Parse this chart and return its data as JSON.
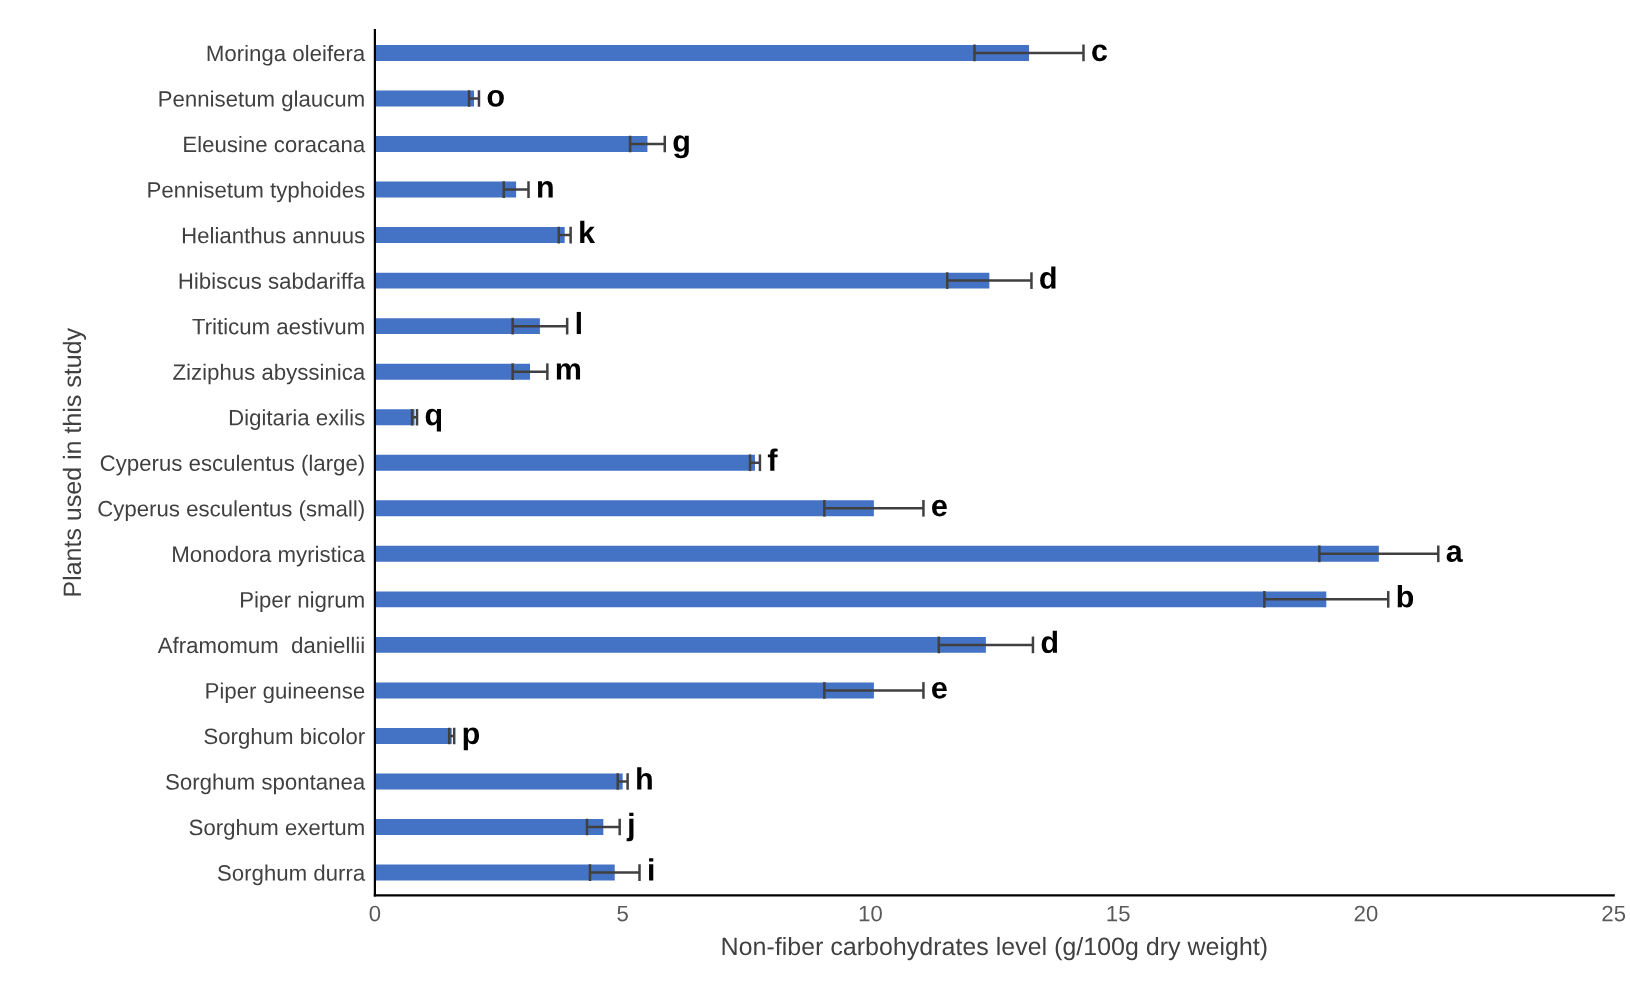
{
  "chart_data": {
    "type": "bar",
    "orientation": "horizontal",
    "xlabel": "Non-fiber carbohydrates level (g/100g dry weight)",
    "ylabel": "Plants used in this study",
    "categories": [
      "Moringa oleifera",
      "Pennisetum glaucum",
      "Eleusine coracana",
      "Pennisetum typhoides",
      "Helianthus annuus",
      "Hibiscus sabdariffa",
      "Triticum aestivum",
      "Ziziphus abyssinica",
      "Digitaria exilis",
      "Cyperus esculentus (large)",
      "Cyperus esculentus (small)",
      "Monodora myristica",
      "Piper nigrum",
      "Aframomum  daniellii",
      "Piper guineense",
      "Sorghum bicolor",
      "Sorghum spontanea",
      "Sorghum exertum",
      "Sorghum durra"
    ],
    "values": [
      13.2,
      2.0,
      5.5,
      2.85,
      3.83,
      12.4,
      3.33,
      3.13,
      0.8,
      7.67,
      10.07,
      20.26,
      19.2,
      12.33,
      10.07,
      1.55,
      5.0,
      4.61,
      4.84
    ],
    "errors": [
      1.1,
      0.1,
      0.35,
      0.25,
      0.12,
      0.85,
      0.55,
      0.35,
      0.05,
      0.1,
      1.0,
      1.2,
      1.25,
      0.95,
      1.0,
      0.05,
      0.1,
      0.33,
      0.5
    ],
    "color": "#4472c4",
    "xlim": [
      0,
      25
    ],
    "xticks": [
      0,
      5,
      10,
      15,
      20,
      25
    ],
    "grid": false,
    "legend": false,
    "annotations": [
      {
        "text": "c",
        "x": 14.3,
        "y": "Moringa oleifera"
      },
      {
        "text": "o",
        "x": 2.1,
        "y": "Pennisetum glaucum"
      },
      {
        "text": "g",
        "x": 5.85,
        "y": "Eleusine coracana"
      },
      {
        "text": "n",
        "x": 3.1,
        "y": "Pennisetum typhoides"
      },
      {
        "text": "k",
        "x": 3.95,
        "y": "Helianthus annuus"
      },
      {
        "text": "d",
        "x": 13.25,
        "y": "Hibiscus sabdariffa"
      },
      {
        "text": "l",
        "x": 3.88,
        "y": "Triticum aestivum"
      },
      {
        "text": "m",
        "x": 3.48,
        "y": "Ziziphus abyssinica"
      },
      {
        "text": "q",
        "x": 0.85,
        "y": "Digitaria exilis"
      },
      {
        "text": "f",
        "x": 7.77,
        "y": "Cyperus esculentus (large)"
      },
      {
        "text": "e",
        "x": 11.07,
        "y": "Cyperus esculentus (small)"
      },
      {
        "text": "a",
        "x": 21.46,
        "y": "Monodora myristica"
      },
      {
        "text": "b",
        "x": 20.45,
        "y": "Piper nigrum"
      },
      {
        "text": "d",
        "x": 13.28,
        "y": "Aframomum  daniellii"
      },
      {
        "text": "e",
        "x": 11.07,
        "y": "Piper guineense"
      },
      {
        "text": "p",
        "x": 1.6,
        "y": "Sorghum bicolor"
      },
      {
        "text": "h",
        "x": 5.1,
        "y": "Sorghum spontanea"
      },
      {
        "text": "j",
        "x": 4.94,
        "y": "Sorghum exertum"
      },
      {
        "text": "i",
        "x": 5.34,
        "y": "Sorghum durra"
      }
    ]
  }
}
